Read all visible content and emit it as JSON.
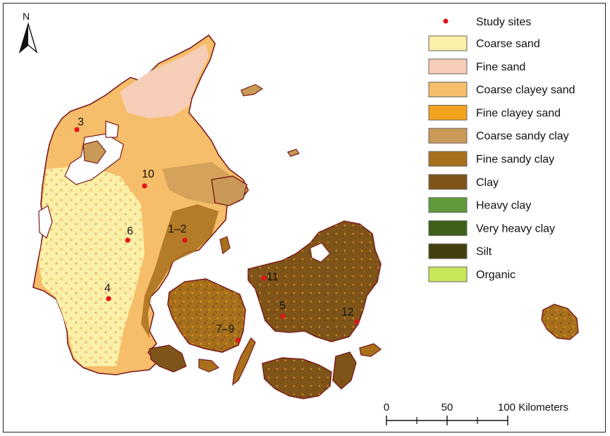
{
  "north_arrow": {
    "label": "N"
  },
  "legend": {
    "sites_label": "Study sites",
    "sites_color": "#e0141b",
    "classes": [
      {
        "label": "Coarse sand",
        "color": "#fbf0a8"
      },
      {
        "label": "Fine sand",
        "color": "#f6cdb7"
      },
      {
        "label": "Coarse clayey sand",
        "color": "#f6bd6a"
      },
      {
        "label": "Fine clayey sand",
        "color": "#f3a21d"
      },
      {
        "label": "Coarse sandy clay",
        "color": "#c99a57"
      },
      {
        "label": "Fine sandy clay",
        "color": "#a8701c"
      },
      {
        "label": "Clay",
        "color": "#7e5419"
      },
      {
        "label": "Heavy clay",
        "color": "#5d9b3b"
      },
      {
        "label": "Very heavy clay",
        "color": "#3e6018"
      },
      {
        "label": "Silt",
        "color": "#433f0c"
      },
      {
        "label": "Organic",
        "color": "#c8e65a"
      }
    ]
  },
  "sites": [
    {
      "label": "3"
    },
    {
      "label": "10"
    },
    {
      "label": "6"
    },
    {
      "label": "1–2"
    },
    {
      "label": "4"
    },
    {
      "label": "11"
    },
    {
      "label": "5"
    },
    {
      "label": "12"
    },
    {
      "label": "7–9"
    }
  ],
  "scale_bar": {
    "label_0": "0",
    "label_50": "50",
    "label_100": "100 Kilometers"
  },
  "colors": {
    "coastline": "#7a1c1c"
  }
}
